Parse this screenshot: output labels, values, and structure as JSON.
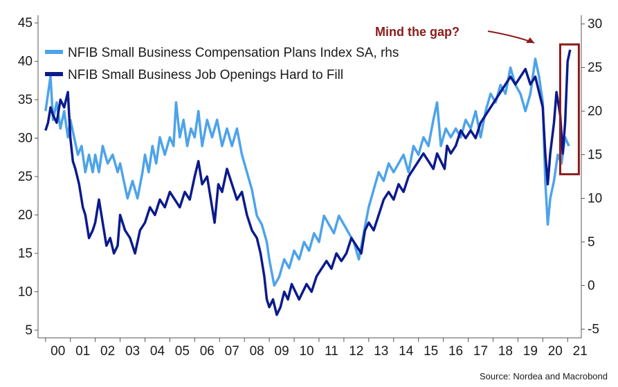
{
  "chart_data": {
    "type": "line",
    "title": "",
    "xlabel": "",
    "ylabel": "",
    "x_ticks": [
      "00",
      "01",
      "02",
      "03",
      "04",
      "05",
      "06",
      "07",
      "08",
      "09",
      "10",
      "11",
      "12",
      "13",
      "14",
      "15",
      "16",
      "17",
      "18",
      "19",
      "20",
      "21"
    ],
    "x_range": [
      1999.7,
      2021.55
    ],
    "left_axis": {
      "ylim": [
        4,
        46
      ],
      "ticks": [
        5,
        10,
        15,
        20,
        25,
        30,
        35,
        40,
        45
      ]
    },
    "right_axis": {
      "ylim": [
        -6,
        31
      ],
      "ticks": [
        -5,
        0,
        5,
        10,
        15,
        20,
        25,
        30
      ]
    },
    "grid": false,
    "legend_position": "top-left",
    "series": [
      {
        "name": "NFIB Small Business Compensation Plans Index SA, rhs",
        "axis": "right",
        "color": "#4da3ea",
        "points": [
          [
            2000.0,
            20
          ],
          [
            2000.1,
            22
          ],
          [
            2000.2,
            24
          ],
          [
            2000.3,
            19
          ],
          [
            2000.45,
            21
          ],
          [
            2000.6,
            18
          ],
          [
            2000.75,
            20
          ],
          [
            2000.9,
            17
          ],
          [
            2001.0,
            19
          ],
          [
            2001.15,
            17
          ],
          [
            2001.3,
            15
          ],
          [
            2001.45,
            16
          ],
          [
            2001.6,
            13
          ],
          [
            2001.75,
            15
          ],
          [
            2001.9,
            13
          ],
          [
            2002.0,
            15
          ],
          [
            2002.15,
            13
          ],
          [
            2002.3,
            16
          ],
          [
            2002.5,
            14
          ],
          [
            2002.7,
            15
          ],
          [
            2002.9,
            13
          ],
          [
            2003.0,
            14
          ],
          [
            2003.15,
            12
          ],
          [
            2003.3,
            10
          ],
          [
            2003.5,
            12
          ],
          [
            2003.7,
            10
          ],
          [
            2003.9,
            13
          ],
          [
            2004.0,
            15
          ],
          [
            2004.15,
            13
          ],
          [
            2004.3,
            16
          ],
          [
            2004.45,
            14
          ],
          [
            2004.6,
            17
          ],
          [
            2004.8,
            15
          ],
          [
            2005.0,
            17
          ],
          [
            2005.15,
            16
          ],
          [
            2005.25,
            21
          ],
          [
            2005.4,
            17
          ],
          [
            2005.55,
            19
          ],
          [
            2005.7,
            16
          ],
          [
            2005.85,
            18
          ],
          [
            2006.0,
            17
          ],
          [
            2006.15,
            20
          ],
          [
            2006.3,
            16
          ],
          [
            2006.5,
            19
          ],
          [
            2006.7,
            17
          ],
          [
            2006.9,
            19
          ],
          [
            2007.1,
            16
          ],
          [
            2007.3,
            18
          ],
          [
            2007.5,
            16
          ],
          [
            2007.7,
            18
          ],
          [
            2007.9,
            15
          ],
          [
            2008.1,
            13
          ],
          [
            2008.3,
            11
          ],
          [
            2008.5,
            8
          ],
          [
            2008.7,
            7
          ],
          [
            2008.9,
            5
          ],
          [
            2009.0,
            3
          ],
          [
            2009.2,
            0
          ],
          [
            2009.4,
            1
          ],
          [
            2009.6,
            3
          ],
          [
            2009.8,
            2
          ],
          [
            2010.0,
            4
          ],
          [
            2010.2,
            3
          ],
          [
            2010.4,
            5
          ],
          [
            2010.6,
            4
          ],
          [
            2010.8,
            6
          ],
          [
            2011.0,
            5
          ],
          [
            2011.2,
            8
          ],
          [
            2011.4,
            7
          ],
          [
            2011.6,
            6
          ],
          [
            2011.8,
            8
          ],
          [
            2012.0,
            7
          ],
          [
            2012.2,
            6
          ],
          [
            2012.4,
            5
          ],
          [
            2012.6,
            3
          ],
          [
            2012.8,
            6
          ],
          [
            2013.0,
            9
          ],
          [
            2013.2,
            11
          ],
          [
            2013.4,
            13
          ],
          [
            2013.6,
            12
          ],
          [
            2013.8,
            14
          ],
          [
            2014.0,
            13
          ],
          [
            2014.2,
            14
          ],
          [
            2014.4,
            15
          ],
          [
            2014.6,
            13
          ],
          [
            2014.8,
            16
          ],
          [
            2015.0,
            15
          ],
          [
            2015.2,
            17
          ],
          [
            2015.4,
            16
          ],
          [
            2015.6,
            19
          ],
          [
            2015.75,
            21
          ],
          [
            2015.9,
            16
          ],
          [
            2016.1,
            18
          ],
          [
            2016.3,
            17
          ],
          [
            2016.5,
            18
          ],
          [
            2016.7,
            17
          ],
          [
            2016.9,
            19
          ],
          [
            2017.1,
            18
          ],
          [
            2017.3,
            20
          ],
          [
            2017.5,
            17
          ],
          [
            2017.7,
            20
          ],
          [
            2017.9,
            22
          ],
          [
            2018.1,
            21
          ],
          [
            2018.3,
            23
          ],
          [
            2018.5,
            22
          ],
          [
            2018.7,
            25
          ],
          [
            2018.9,
            23
          ],
          [
            2019.1,
            22
          ],
          [
            2019.3,
            20
          ],
          [
            2019.5,
            22
          ],
          [
            2019.7,
            26
          ],
          [
            2019.85,
            24
          ],
          [
            2020.0,
            21
          ],
          [
            2020.1,
            12
          ],
          [
            2020.2,
            7
          ],
          [
            2020.3,
            10
          ],
          [
            2020.45,
            12
          ],
          [
            2020.6,
            15
          ],
          [
            2020.75,
            14
          ],
          [
            2020.9,
            17
          ],
          [
            2021.05,
            16
          ]
        ]
      },
      {
        "name": "NFIB Small Business Job Openings Hard to Fill",
        "axis": "left",
        "color": "#0b1a8c",
        "points": [
          [
            2000.0,
            31
          ],
          [
            2000.1,
            32
          ],
          [
            2000.2,
            34
          ],
          [
            2000.3,
            33
          ],
          [
            2000.45,
            32
          ],
          [
            2000.6,
            35
          ],
          [
            2000.75,
            34
          ],
          [
            2000.9,
            36
          ],
          [
            2001.0,
            30
          ],
          [
            2001.1,
            27
          ],
          [
            2001.2,
            26
          ],
          [
            2001.35,
            24
          ],
          [
            2001.5,
            21
          ],
          [
            2001.6,
            20
          ],
          [
            2001.75,
            17
          ],
          [
            2001.9,
            18
          ],
          [
            2002.0,
            19
          ],
          [
            2002.15,
            22
          ],
          [
            2002.3,
            19
          ],
          [
            2002.45,
            16
          ],
          [
            2002.6,
            17
          ],
          [
            2002.75,
            15
          ],
          [
            2002.9,
            16
          ],
          [
            2003.0,
            20
          ],
          [
            2003.2,
            18
          ],
          [
            2003.4,
            17
          ],
          [
            2003.6,
            15
          ],
          [
            2003.8,
            18
          ],
          [
            2004.0,
            19
          ],
          [
            2004.2,
            21
          ],
          [
            2004.4,
            20
          ],
          [
            2004.6,
            22
          ],
          [
            2004.8,
            21
          ],
          [
            2005.0,
            23
          ],
          [
            2005.2,
            22
          ],
          [
            2005.4,
            21
          ],
          [
            2005.6,
            23
          ],
          [
            2005.8,
            22
          ],
          [
            2006.0,
            25
          ],
          [
            2006.15,
            27
          ],
          [
            2006.3,
            24
          ],
          [
            2006.5,
            25
          ],
          [
            2006.65,
            22
          ],
          [
            2006.8,
            19
          ],
          [
            2006.95,
            24
          ],
          [
            2007.1,
            23
          ],
          [
            2007.3,
            26
          ],
          [
            2007.5,
            24
          ],
          [
            2007.7,
            22
          ],
          [
            2007.9,
            23
          ],
          [
            2008.1,
            20
          ],
          [
            2008.3,
            18
          ],
          [
            2008.5,
            17
          ],
          [
            2008.65,
            15
          ],
          [
            2008.8,
            12
          ],
          [
            2008.9,
            9
          ],
          [
            2009.0,
            8
          ],
          [
            2009.15,
            9
          ],
          [
            2009.3,
            7
          ],
          [
            2009.45,
            8
          ],
          [
            2009.6,
            10
          ],
          [
            2009.75,
            9
          ],
          [
            2009.9,
            11
          ],
          [
            2010.05,
            10
          ],
          [
            2010.2,
            9
          ],
          [
            2010.35,
            10
          ],
          [
            2010.5,
            11
          ],
          [
            2010.7,
            10
          ],
          [
            2010.9,
            12
          ],
          [
            2011.1,
            13
          ],
          [
            2011.3,
            14
          ],
          [
            2011.5,
            13
          ],
          [
            2011.7,
            15
          ],
          [
            2011.9,
            14
          ],
          [
            2012.1,
            15
          ],
          [
            2012.3,
            17
          ],
          [
            2012.5,
            16
          ],
          [
            2012.7,
            15
          ],
          [
            2012.85,
            18
          ],
          [
            2013.0,
            19
          ],
          [
            2013.2,
            18
          ],
          [
            2013.4,
            20
          ],
          [
            2013.6,
            22
          ],
          [
            2013.8,
            23
          ],
          [
            2014.0,
            22
          ],
          [
            2014.2,
            24
          ],
          [
            2014.4,
            23
          ],
          [
            2014.6,
            25
          ],
          [
            2014.8,
            26
          ],
          [
            2015.0,
            27
          ],
          [
            2015.2,
            28
          ],
          [
            2015.4,
            27
          ],
          [
            2015.6,
            26
          ],
          [
            2015.75,
            28
          ],
          [
            2015.9,
            27
          ],
          [
            2016.05,
            26
          ],
          [
            2016.15,
            29
          ],
          [
            2016.3,
            28
          ],
          [
            2016.5,
            29
          ],
          [
            2016.7,
            31
          ],
          [
            2016.9,
            30
          ],
          [
            2017.1,
            31
          ],
          [
            2017.3,
            30
          ],
          [
            2017.5,
            32
          ],
          [
            2017.7,
            33
          ],
          [
            2017.9,
            34
          ],
          [
            2018.1,
            35
          ],
          [
            2018.3,
            36
          ],
          [
            2018.5,
            37
          ],
          [
            2018.7,
            38
          ],
          [
            2018.9,
            37
          ],
          [
            2019.1,
            38
          ],
          [
            2019.3,
            39
          ],
          [
            2019.5,
            37
          ],
          [
            2019.7,
            38
          ],
          [
            2019.85,
            36
          ],
          [
            2020.0,
            34
          ],
          [
            2020.1,
            28
          ],
          [
            2020.2,
            24
          ],
          [
            2020.3,
            28
          ],
          [
            2020.45,
            32
          ],
          [
            2020.55,
            36
          ],
          [
            2020.7,
            33
          ],
          [
            2020.8,
            28
          ],
          [
            2020.9,
            32
          ],
          [
            2021.0,
            40
          ],
          [
            2021.1,
            41.5
          ]
        ]
      }
    ],
    "annotation": {
      "text": "Mind the gap?",
      "color": "#8b1a1a",
      "box_x_range": [
        2020.7,
        2021.45
      ],
      "box_left_y_range": [
        25.3,
        42.2
      ]
    },
    "source": "Source: Nordea and Macrobond"
  }
}
